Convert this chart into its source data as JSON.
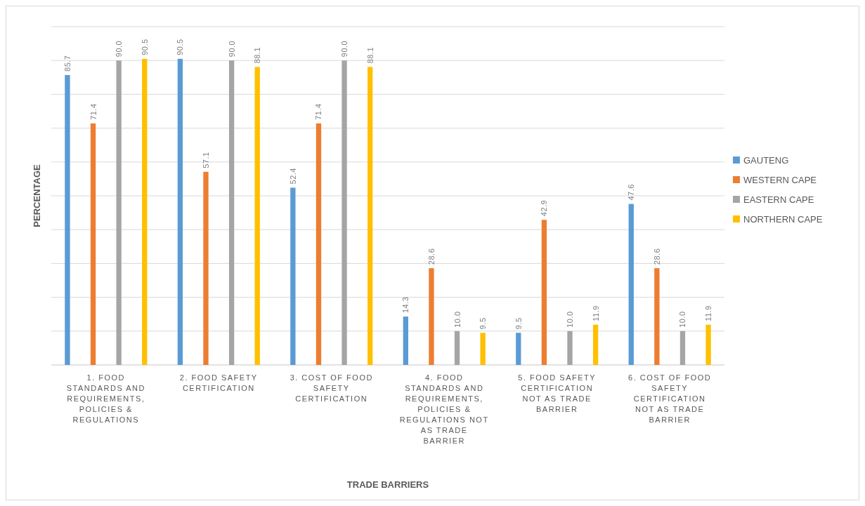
{
  "chart_data": {
    "type": "bar",
    "xlabel": "TRADE BARRIERS",
    "ylabel": "PERCENTAGE",
    "categories": [
      "1. FOOD STANDARDS AND REQUIREMENTS, POLICIES & REGULATIONS",
      "2. FOOD SAFETY CERTIFICATION",
      "3. COST OF FOOD SAFETY CERTIFICATION",
      "4. FOOD STANDARDS AND REQUIREMENTS, POLICIES & REGULATIONS NOT AS TRADE BARRIER",
      "5. FOOD SAFETY CERTIFICATION NOT AS TRADE BARRIER",
      "6. COST OF FOOD SAFETY CERTIFICATION NOT AS TRADE BARRIER"
    ],
    "series": [
      {
        "name": "GAUTENG",
        "color": "#5b9bd5",
        "values": [
          85.7,
          90.5,
          52.4,
          14.3,
          9.5,
          47.6
        ],
        "value_labels": [
          "85.7",
          "90.5",
          "52.4",
          "14.3",
          "9.5",
          "47.6"
        ]
      },
      {
        "name": "WESTERN CAPE",
        "color": "#ed7d31",
        "values": [
          71.4,
          57.1,
          71.4,
          28.6,
          42.9,
          28.6
        ],
        "value_labels": [
          "71.4",
          "57.1",
          "71.4",
          "28.6",
          "42.9",
          "28.6"
        ]
      },
      {
        "name": "EASTERN CAPE",
        "color": "#a5a5a5",
        "values": [
          90.0,
          90.0,
          90.0,
          10.0,
          10.0,
          10.0
        ],
        "value_labels": [
          "90.0",
          "90.0",
          "90.0",
          "10.0",
          "10.0",
          "10.0"
        ]
      },
      {
        "name": "NORTHERN CAPE",
        "color": "#ffc000",
        "values": [
          90.5,
          88.1,
          88.1,
          9.5,
          11.9,
          11.9
        ],
        "value_labels": [
          "90.5",
          "88.1",
          "88.1",
          "9.5",
          "11.9",
          "11.9"
        ]
      }
    ],
    "ylim": [
      0,
      100
    ],
    "yticks": [
      {
        "value": 0,
        "label": null
      },
      {
        "value": 10,
        "label": null
      },
      {
        "value": 20,
        "label": null
      },
      {
        "value": 30,
        "label": null
      },
      {
        "value": 40,
        "label": null
      },
      {
        "value": 50,
        "label": null
      },
      {
        "value": 60,
        "label": null
      },
      {
        "value": 70,
        "label": null
      },
      {
        "value": 80,
        "label": null
      },
      {
        "value": 90,
        "label": null
      },
      {
        "value": 100,
        "label": null
      }
    ],
    "tick_labels": "x",
    "grid": "y",
    "legend": "right"
  }
}
